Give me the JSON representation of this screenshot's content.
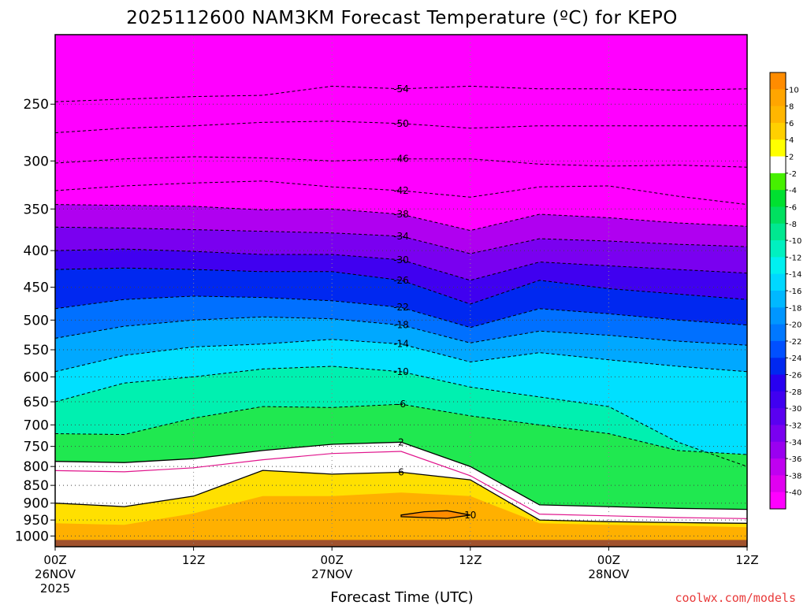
{
  "chart_data": {
    "type": "heatmap",
    "title": "2025112600 NAM3KM Forecast Temperature (ºC) for KEPO",
    "xlabel": "Forecast Time (UTC)",
    "ylabel": "",
    "y_scale": "log",
    "y_inverted": true,
    "ylim": [
      200,
      1035
    ],
    "yticks": [
      250,
      300,
      350,
      400,
      450,
      500,
      550,
      600,
      650,
      700,
      750,
      800,
      850,
      900,
      950,
      1000
    ],
    "xlim": [
      0,
      60
    ],
    "xticks": [
      {
        "hour": 0,
        "label": "00Z",
        "sub": "26NOV",
        "sub2": "2025"
      },
      {
        "hour": 12,
        "label": "12Z",
        "sub": "",
        "sub2": ""
      },
      {
        "hour": 24,
        "label": "00Z",
        "sub": "27NOV",
        "sub2": ""
      },
      {
        "hour": 36,
        "label": "12Z",
        "sub": "",
        "sub2": ""
      },
      {
        "hour": 48,
        "label": "00Z",
        "sub": "28NOV",
        "sub2": ""
      },
      {
        "hour": 60,
        "label": "12Z",
        "sub": "",
        "sub2": ""
      }
    ],
    "grid": true,
    "colorbar": {
      "labels": [
        10,
        8,
        6,
        4,
        2,
        -2,
        -4,
        -6,
        -8,
        -10,
        -12,
        -14,
        -16,
        -18,
        -20,
        -22,
        -24,
        -26,
        -28,
        -30,
        -32,
        -34,
        -36,
        -38,
        -40
      ],
      "colors": [
        "#ff8c00",
        "#ffa500",
        "#ffb600",
        "#ffd000",
        "#ffff00",
        "#ffffff",
        "#46f000",
        "#00e030",
        "#00e060",
        "#00e890",
        "#00f0c0",
        "#00f0f0",
        "#00d8ff",
        "#00b8ff",
        "#0096ff",
        "#0078ff",
        "#0050ff",
        "#0028f0",
        "#2800f0",
        "#4000f0",
        "#5a00f0",
        "#7a00f0",
        "#9a00f0",
        "#c000f0",
        "#e000f0",
        "#ff00ff"
      ]
    },
    "series": [
      {
        "name": "-54",
        "values": [
          [
            0,
            248
          ],
          [
            6,
            246
          ],
          [
            12,
            244
          ],
          [
            18,
            243
          ],
          [
            24,
            236
          ],
          [
            30,
            238
          ],
          [
            36,
            236
          ],
          [
            42,
            238
          ],
          [
            48,
            238
          ],
          [
            54,
            239
          ],
          [
            60,
            238
          ]
        ]
      },
      {
        "name": "-50",
        "values": [
          [
            0,
            274
          ],
          [
            6,
            270
          ],
          [
            12,
            268
          ],
          [
            18,
            265
          ],
          [
            24,
            264
          ],
          [
            30,
            266
          ],
          [
            36,
            270
          ],
          [
            42,
            268
          ],
          [
            48,
            268
          ],
          [
            54,
            268
          ],
          [
            60,
            268
          ]
        ]
      },
      {
        "name": "-46",
        "values": [
          [
            0,
            302
          ],
          [
            6,
            298
          ],
          [
            12,
            296
          ],
          [
            18,
            297
          ],
          [
            24,
            300
          ],
          [
            30,
            298
          ],
          [
            36,
            298
          ],
          [
            42,
            303
          ],
          [
            48,
            305
          ],
          [
            54,
            304
          ],
          [
            60,
            306
          ]
        ]
      },
      {
        "name": "-42",
        "values": [
          [
            0,
            330
          ],
          [
            6,
            325
          ],
          [
            12,
            322
          ],
          [
            18,
            320
          ],
          [
            24,
            326
          ],
          [
            30,
            330
          ],
          [
            36,
            337
          ],
          [
            42,
            326
          ],
          [
            48,
            325
          ],
          [
            54,
            336
          ],
          [
            60,
            345
          ]
        ]
      },
      {
        "name": "-38",
        "values": [
          [
            0,
            345
          ],
          [
            6,
            346
          ],
          [
            12,
            347
          ],
          [
            18,
            351
          ],
          [
            24,
            350
          ],
          [
            30,
            356
          ],
          [
            36,
            375
          ],
          [
            42,
            356
          ],
          [
            48,
            360
          ],
          [
            54,
            366
          ],
          [
            60,
            370
          ]
        ]
      },
      {
        "name": "-34",
        "values": [
          [
            0,
            371
          ],
          [
            6,
            372
          ],
          [
            12,
            374
          ],
          [
            18,
            376
          ],
          [
            24,
            378
          ],
          [
            30,
            382
          ],
          [
            36,
            404
          ],
          [
            42,
            385
          ],
          [
            48,
            388
          ],
          [
            54,
            392
          ],
          [
            60,
            395
          ]
        ]
      },
      {
        "name": "-30",
        "values": [
          [
            0,
            400
          ],
          [
            6,
            398
          ],
          [
            12,
            401
          ],
          [
            18,
            405
          ],
          [
            24,
            405
          ],
          [
            30,
            412
          ],
          [
            36,
            440
          ],
          [
            42,
            415
          ],
          [
            48,
            420
          ],
          [
            54,
            425
          ],
          [
            60,
            430
          ]
        ]
      },
      {
        "name": "-26",
        "values": [
          [
            0,
            425
          ],
          [
            6,
            423
          ],
          [
            12,
            425
          ],
          [
            18,
            428
          ],
          [
            24,
            428
          ],
          [
            30,
            440
          ],
          [
            36,
            475
          ],
          [
            42,
            440
          ],
          [
            48,
            452
          ],
          [
            54,
            460
          ],
          [
            60,
            468
          ]
        ]
      },
      {
        "name": "-22",
        "values": [
          [
            0,
            482
          ],
          [
            6,
            468
          ],
          [
            12,
            463
          ],
          [
            18,
            465
          ],
          [
            24,
            470
          ],
          [
            30,
            480
          ],
          [
            36,
            512
          ],
          [
            42,
            482
          ],
          [
            48,
            490
          ],
          [
            54,
            500
          ],
          [
            60,
            508
          ]
        ]
      },
      {
        "name": "-18",
        "values": [
          [
            0,
            530
          ],
          [
            6,
            510
          ],
          [
            12,
            500
          ],
          [
            18,
            495
          ],
          [
            24,
            498
          ],
          [
            30,
            508
          ],
          [
            36,
            538
          ],
          [
            42,
            518
          ],
          [
            48,
            525
          ],
          [
            54,
            535
          ],
          [
            60,
            542
          ]
        ]
      },
      {
        "name": "-14",
        "values": [
          [
            0,
            590
          ],
          [
            6,
            560
          ],
          [
            12,
            545
          ],
          [
            18,
            540
          ],
          [
            24,
            532
          ],
          [
            30,
            540
          ],
          [
            36,
            572
          ],
          [
            42,
            555
          ],
          [
            48,
            568
          ],
          [
            54,
            580
          ],
          [
            60,
            590
          ]
        ]
      },
      {
        "name": "-10",
        "values": [
          [
            0,
            650
          ],
          [
            6,
            612
          ],
          [
            12,
            600
          ],
          [
            18,
            585
          ],
          [
            24,
            580
          ],
          [
            30,
            590
          ],
          [
            36,
            620
          ],
          [
            42,
            640
          ],
          [
            48,
            660
          ],
          [
            54,
            740
          ],
          [
            60,
            800
          ]
        ]
      },
      {
        "name": "-6",
        "values": [
          [
            0,
            720
          ],
          [
            6,
            722
          ],
          [
            12,
            685
          ],
          [
            18,
            660
          ],
          [
            24,
            662
          ],
          [
            30,
            655
          ],
          [
            36,
            680
          ],
          [
            42,
            700
          ],
          [
            48,
            720
          ],
          [
            54,
            760
          ],
          [
            60,
            770
          ]
        ]
      },
      {
        "name": "2",
        "values": [
          [
            0,
            787
          ],
          [
            6,
            790
          ],
          [
            12,
            780
          ],
          [
            18,
            760
          ],
          [
            24,
            745
          ],
          [
            30,
            740
          ],
          [
            36,
            800
          ],
          [
            42,
            905
          ],
          [
            48,
            910
          ],
          [
            54,
            915
          ],
          [
            60,
            918
          ]
        ]
      },
      {
        "name": "6",
        "values": [
          [
            0,
            900
          ],
          [
            6,
            910
          ],
          [
            12,
            880
          ],
          [
            18,
            810
          ],
          [
            24,
            820
          ],
          [
            30,
            815
          ],
          [
            36,
            835
          ],
          [
            42,
            950
          ],
          [
            48,
            955
          ],
          [
            54,
            958
          ],
          [
            60,
            960
          ]
        ]
      },
      {
        "name": "10",
        "values": [
          [
            30,
            935
          ],
          [
            32,
            925
          ],
          [
            34,
            922
          ],
          [
            36,
            935
          ],
          [
            34,
            945
          ],
          [
            30,
            940
          ]
        ]
      }
    ]
  },
  "credit": "coolwx.com/models"
}
